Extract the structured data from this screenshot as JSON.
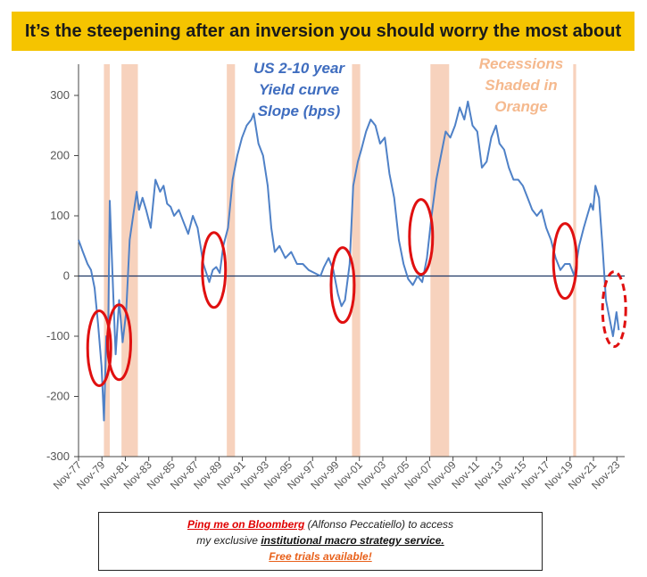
{
  "title": "It’s the steepening after an inversion you should worry the most about",
  "annotations": {
    "series_label_lines": [
      "US 2-10 year",
      "Yield curve",
      "Slope (bps)"
    ],
    "recession_label_lines": [
      "Recessions",
      "Shaded in",
      "Orange"
    ]
  },
  "footer": {
    "link": "Ping me on Bloomberg",
    "line1_rest": " (Alfonso Peccatiello) to access",
    "line2_pre": "my exclusive ",
    "line2_bold": "institutional macro strategy service.",
    "line3": "Free trials available!"
  },
  "colors": {
    "line": "#4f81c7",
    "recession": "#f7d2bd",
    "circle": "#e01010",
    "series_label": "#3f6dbf",
    "recession_label": "#f5b98e",
    "zero_line": "#1f3864"
  },
  "chart_data": {
    "type": "line",
    "title": "It’s the steepening after an inversion you should worry the most about",
    "xlabel": "",
    "ylabel": "",
    "ylim": [
      -300,
      350
    ],
    "yticks": [
      -300,
      -200,
      -100,
      0,
      100,
      200,
      300
    ],
    "xlim": [
      1977.83,
      2024.5
    ],
    "x_tick_labels": [
      "Nov-77",
      "Nov-79",
      "Nov-81",
      "Nov-83",
      "Nov-85",
      "Nov-87",
      "Nov-89",
      "Nov-91",
      "Nov-93",
      "Nov-95",
      "Nov-97",
      "Nov-99",
      "Nov-01",
      "Nov-03",
      "Nov-05",
      "Nov-07",
      "Nov-09",
      "Nov-11",
      "Nov-13",
      "Nov-15",
      "Nov-17",
      "Nov-19",
      "Nov-21",
      "Nov-23"
    ],
    "x_tick_values": [
      1977.83,
      1979.83,
      1981.83,
      1983.83,
      1985.83,
      1987.83,
      1989.83,
      1991.83,
      1993.83,
      1995.83,
      1997.83,
      1999.83,
      2001.83,
      2003.83,
      2005.83,
      2007.83,
      2009.83,
      2011.83,
      2013.83,
      2015.83,
      2017.83,
      2019.83,
      2021.83,
      2023.83
    ],
    "recessions": [
      [
        1980.0,
        1980.5
      ],
      [
        1981.5,
        1982.9
      ],
      [
        1990.5,
        1991.2
      ],
      [
        2001.2,
        2001.9
      ],
      [
        2007.9,
        2009.5
      ],
      [
        2020.1,
        2020.35
      ]
    ],
    "series": [
      {
        "name": "US 2-10 year Yield curve Slope (bps)",
        "x": [
          1977.83,
          1978.2,
          1978.6,
          1978.9,
          1979.2,
          1979.5,
          1979.8,
          1980.0,
          1980.2,
          1980.35,
          1980.5,
          1980.8,
          1981.0,
          1981.3,
          1981.6,
          1981.9,
          1982.2,
          1982.5,
          1982.8,
          1983.0,
          1983.3,
          1983.6,
          1984.0,
          1984.4,
          1984.8,
          1985.1,
          1985.4,
          1985.7,
          1986.0,
          1986.4,
          1986.8,
          1987.2,
          1987.6,
          1988.0,
          1988.5,
          1989.0,
          1989.3,
          1989.6,
          1989.9,
          1990.2,
          1990.6,
          1991.0,
          1991.4,
          1991.8,
          1992.2,
          1992.6,
          1992.8,
          1993.2,
          1993.6,
          1994.0,
          1994.3,
          1994.6,
          1995.0,
          1995.5,
          1996.0,
          1996.5,
          1997.0,
          1997.5,
          1998.0,
          1998.5,
          1998.8,
          1999.2,
          1999.6,
          2000.0,
          2000.3,
          2000.6,
          2001.0,
          2001.3,
          2001.7,
          2002.0,
          2002.4,
          2002.8,
          2003.2,
          2003.6,
          2004.0,
          2004.4,
          2004.8,
          2005.2,
          2005.6,
          2006.0,
          2006.4,
          2006.8,
          2007.2,
          2007.6,
          2008.0,
          2008.4,
          2008.8,
          2009.2,
          2009.6,
          2010.0,
          2010.4,
          2010.8,
          2011.1,
          2011.5,
          2011.9,
          2012.3,
          2012.7,
          2013.1,
          2013.5,
          2013.8,
          2014.2,
          2014.6,
          2015.0,
          2015.4,
          2015.8,
          2016.2,
          2016.6,
          2017.0,
          2017.4,
          2017.8,
          2018.2,
          2018.6,
          2019.0,
          2019.4,
          2019.8,
          2020.2,
          2020.6,
          2021.0,
          2021.3,
          2021.6,
          2021.8,
          2022.0,
          2022.3,
          2022.6,
          2022.9,
          2023.2,
          2023.5,
          2023.8,
          2024.0
        ],
        "y": [
          60,
          40,
          20,
          10,
          -20,
          -80,
          -150,
          -240,
          -100,
          -120,
          125,
          -30,
          -130,
          -40,
          -110,
          -60,
          60,
          100,
          140,
          110,
          130,
          110,
          80,
          160,
          140,
          150,
          120,
          115,
          100,
          110,
          90,
          70,
          100,
          80,
          20,
          -10,
          10,
          15,
          5,
          50,
          80,
          160,
          200,
          230,
          250,
          260,
          270,
          220,
          200,
          150,
          80,
          40,
          50,
          30,
          40,
          20,
          20,
          10,
          5,
          0,
          15,
          30,
          10,
          -30,
          -50,
          -40,
          20,
          150,
          190,
          210,
          240,
          260,
          250,
          220,
          230,
          170,
          130,
          60,
          20,
          -5,
          -15,
          0,
          -10,
          30,
          100,
          160,
          200,
          240,
          230,
          250,
          280,
          260,
          290,
          250,
          240,
          180,
          190,
          230,
          250,
          220,
          210,
          180,
          160,
          160,
          150,
          130,
          110,
          100,
          110,
          80,
          60,
          30,
          10,
          20,
          20,
          0,
          50,
          80,
          100,
          120,
          110,
          150,
          130,
          50,
          -40,
          -70,
          -100,
          -60,
          -90
        ]
      }
    ],
    "circles": [
      {
        "x": 1979.6,
        "y": -120,
        "style": "solid"
      },
      {
        "x": 1981.3,
        "y": -110,
        "style": "solid"
      },
      {
        "x": 1989.4,
        "y": 10,
        "style": "solid"
      },
      {
        "x": 2000.4,
        "y": -15,
        "style": "solid"
      },
      {
        "x": 2007.1,
        "y": 65,
        "style": "solid"
      },
      {
        "x": 2019.4,
        "y": 25,
        "style": "solid"
      },
      {
        "x": 2023.6,
        "y": -55,
        "style": "dashed"
      }
    ],
    "grid": false,
    "legend": "none"
  }
}
